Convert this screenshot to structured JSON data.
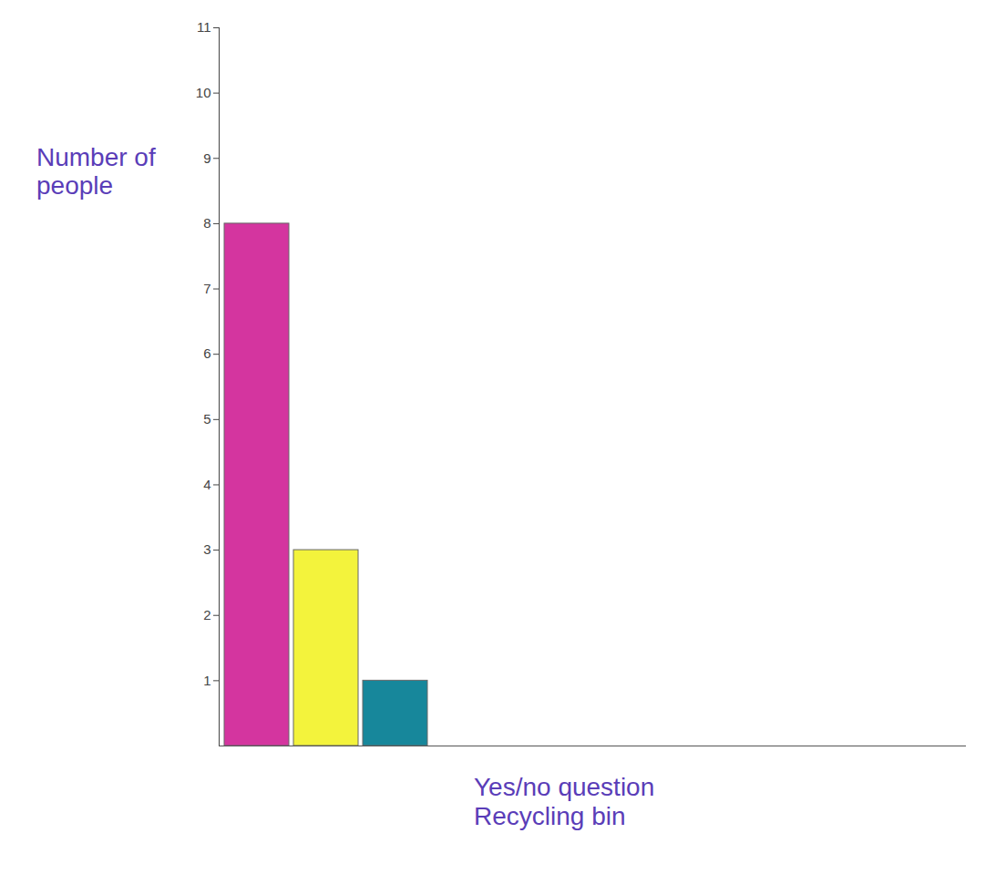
{
  "chart_data": {
    "type": "bar",
    "y_label": "Number of people",
    "x_label": "Yes/no question\nRecycling bin",
    "categories": [
      null,
      null,
      null
    ],
    "values": [
      8,
      3,
      1
    ],
    "colors": [
      "#d4359f",
      "#f3f33c",
      "#17879b"
    ],
    "ylim": [
      0,
      11
    ],
    "yticks": [
      1,
      2,
      3,
      4,
      5,
      6,
      7,
      8,
      9,
      10,
      11
    ],
    "grid": false
  }
}
